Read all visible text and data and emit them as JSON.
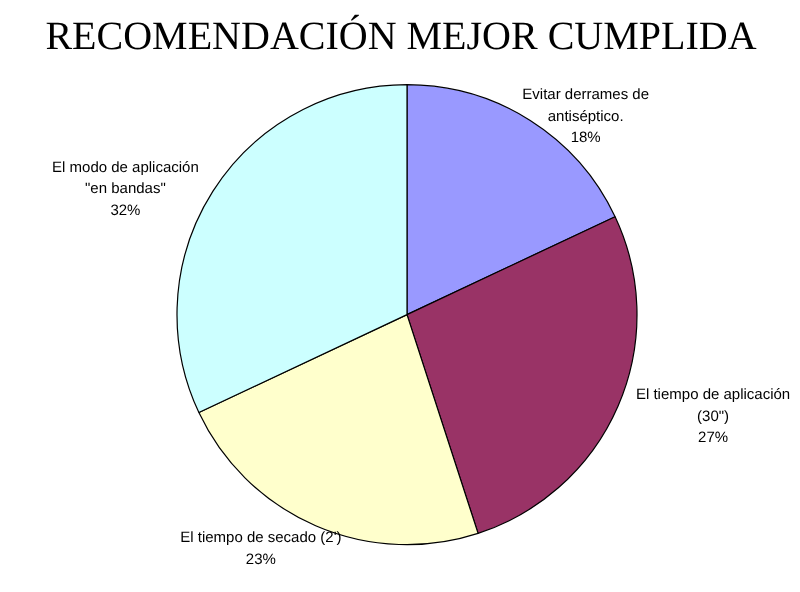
{
  "chart_data": {
    "type": "pie",
    "title": "RECOMENDACIÓN MEJOR CUMPLIDA",
    "categories": [
      "Evitar derrames de\nantiséptico.",
      "El tiempo de aplicación\n(30\")",
      "El tiempo de secado (2')",
      "El modo de aplicación\n\"en bandas\""
    ],
    "values": [
      18,
      27,
      23,
      32
    ],
    "colors": [
      "#9999ff",
      "#993366",
      "#ffffcc",
      "#ccffff"
    ],
    "value_labels": [
      "18%",
      "27%",
      "23%",
      "32%"
    ]
  }
}
